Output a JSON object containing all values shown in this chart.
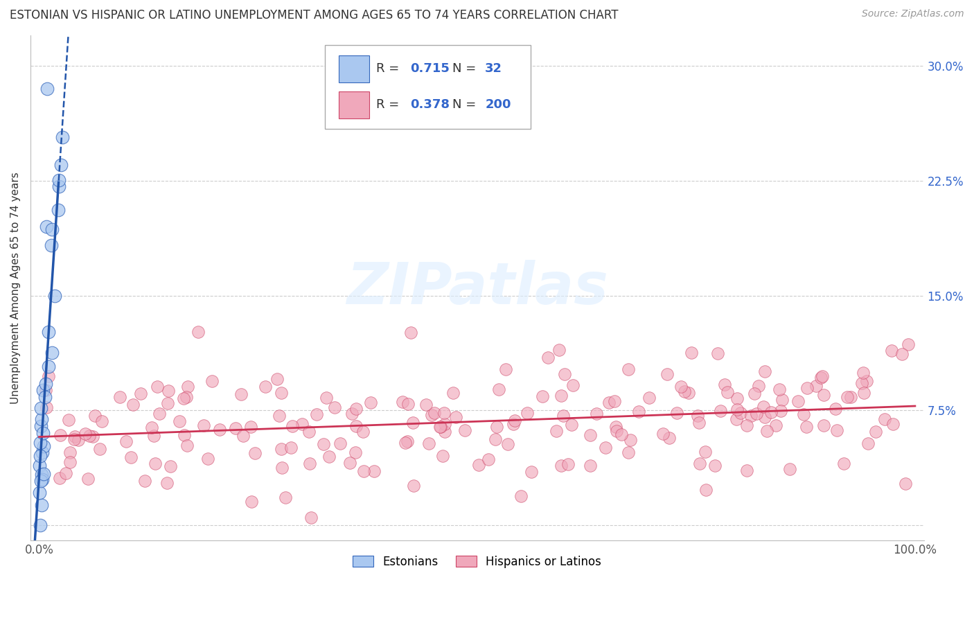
{
  "title": "ESTONIAN VS HISPANIC OR LATINO UNEMPLOYMENT AMONG AGES 65 TO 74 YEARS CORRELATION CHART",
  "source": "Source: ZipAtlas.com",
  "ylabel": "Unemployment Among Ages 65 to 74 years",
  "R_estonian": 0.715,
  "N_estonian": 32,
  "R_hispanic": 0.378,
  "N_hispanic": 200,
  "color_estonian_fill": "#aac8f0",
  "color_estonian_edge": "#3366bb",
  "color_hispanic_fill": "#f0a8bb",
  "color_hispanic_edge": "#cc4466",
  "color_estonian_line": "#2255aa",
  "color_hispanic_line": "#cc3355",
  "color_legend_val": "#3366cc",
  "color_ytick": "#3366cc",
  "color_xtick": "#555555",
  "watermark_text": "ZIPatlas",
  "watermark_color": "#ddeeff",
  "background_color": "#ffffff",
  "grid_color": "#cccccc",
  "title_fontsize": 12,
  "source_fontsize": 10,
  "legend_fontsize": 13,
  "tick_fontsize": 12,
  "ytick_vals": [
    0.0,
    7.5,
    15.0,
    22.5,
    30.0
  ],
  "ytick_labels": [
    "",
    "7.5%",
    "15.0%",
    "22.5%",
    "30.0%"
  ],
  "xlim": [
    -1,
    101
  ],
  "ylim": [
    -1,
    32
  ]
}
